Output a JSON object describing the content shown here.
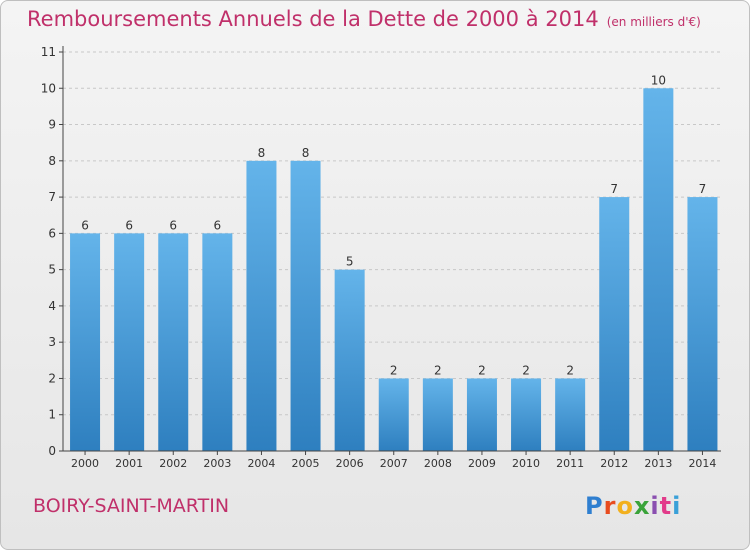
{
  "header": {
    "title": "Remboursements Annuels de la Dette de 2000 à 2014",
    "unit": "(en milliers d'€)"
  },
  "footer": {
    "town": "BOIRY-SAINT-MARTIN",
    "logo_letters": [
      "P",
      "r",
      "o",
      "x",
      "i",
      "t",
      "i"
    ],
    "logo_colors": [
      "#2f7fd0",
      "#e84c1f",
      "#f2b01e",
      "#3aa33a",
      "#8a4fb0",
      "#e23b8a",
      "#3aa0d8"
    ]
  },
  "colors": {
    "title": "#c0306a",
    "bar_top": "#64b4ea",
    "bar_bottom": "#2e7fbf",
    "axis": "#444444",
    "grid": "#c8c8c8"
  },
  "chart_data": {
    "type": "bar",
    "categories": [
      "2000",
      "2001",
      "2002",
      "2003",
      "2004",
      "2005",
      "2006",
      "2007",
      "2008",
      "2009",
      "2010",
      "2011",
      "2012",
      "2013",
      "2014"
    ],
    "values": [
      6,
      6,
      6,
      6,
      8,
      8,
      5,
      2,
      2,
      2,
      2,
      2,
      7,
      10,
      7
    ],
    "yticks": [
      0,
      1,
      2,
      3,
      4,
      5,
      6,
      7,
      8,
      9,
      10,
      11
    ],
    "ylim": [
      0,
      11
    ],
    "grid": "horizontal dashed"
  }
}
